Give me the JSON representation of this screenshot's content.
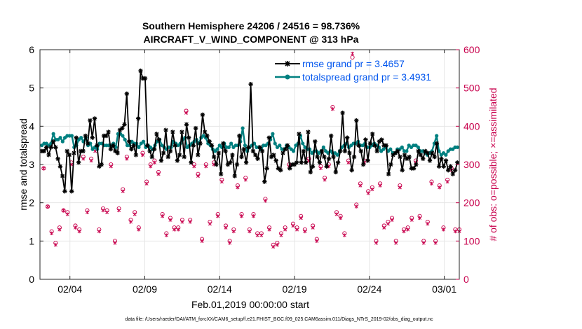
{
  "chart_data": {
    "type": "line",
    "title_line1": "Southern Hemisphere 24206 / 24516 = 98.736%",
    "title_line2": "AIRCRAFT_V_WIND_COMPONENT @ 313 hPa",
    "xlabel": "Feb.01,2019 00:00:00 start",
    "ylabel_left": "rmse and totalspread",
    "ylabel_right": "# of obs: o=possible; ×=assimilated",
    "footer": "data file: /Users/raeder/DAI/ATM_forcXX/CAM6_setup/f.e21.FHIST_BGC.f09_025.CAM6assim.011/Diags_NTrS_2019-02/obs_diag_output.nc",
    "xlim": [
      1,
      29
    ],
    "ylim_left": [
      0,
      6
    ],
    "ylim_right": [
      0,
      600
    ],
    "x_ticks": [
      3,
      8,
      13,
      18,
      23,
      28
    ],
    "x_tick_labels": [
      "02/04",
      "02/09",
      "02/14",
      "02/19",
      "02/24",
      "03/01"
    ],
    "y_ticks_left": [
      0,
      1,
      2,
      3,
      4,
      5,
      6
    ],
    "y_ticks_right": [
      0,
      100,
      200,
      300,
      400,
      500,
      600
    ],
    "series": [
      {
        "name": "rmse grand pr = 3.4657",
        "color": "#000000",
        "values": [
          3.35,
          3.35,
          3.45,
          3.25,
          3.45,
          3.6,
          3.45,
          3.15,
          2.95,
          2.7,
          2.3,
          3.35,
          3.25,
          2.3,
          3.3,
          3.7,
          3.05,
          3.35,
          3.35,
          3.75,
          3.55,
          4.15,
          3.7,
          4.2,
          3.5,
          2.95,
          3.0,
          3.75,
          3.75,
          3.85,
          3.4,
          3.5,
          3.35,
          3.3,
          3.9,
          3.95,
          4.05,
          4.85,
          3.6,
          3.4,
          3.5,
          3.25,
          4.2,
          5.45,
          5.25,
          5.25,
          3.5,
          3.35,
          3.2,
          3.4,
          3.8,
          3.65,
          3.1,
          3.3,
          3.9,
          3.2,
          3.35,
          3.85,
          3.5,
          3.1,
          3.25,
          3.85,
          3.2,
          4.05,
          3.7,
          3.05,
          3.5,
          3.95,
          3.25,
          3.55,
          4.3,
          3.85,
          3.75,
          3.6,
          3.5,
          3.2,
          3.0,
          3.3,
          2.75,
          3.55,
          3.35,
          3.0,
          3.05,
          3.25,
          2.7,
          3.0,
          3.75,
          3.2,
          3.4,
          3.05,
          3.45,
          5.1,
          3.35,
          3.25,
          3.15,
          3.45,
          3.35,
          2.55,
          2.9,
          3.7,
          3.2,
          3.25,
          3.1,
          2.9,
          2.85,
          3.3,
          3.4,
          3.5,
          2.9,
          3.0,
          3.0,
          3.05,
          3.8,
          3.05,
          3.35,
          3.05,
          3.85,
          2.8,
          2.95,
          3.6,
          3.2,
          3.05,
          3.35,
          3.2,
          2.95,
          3.15,
          3.75,
          3.2,
          2.8,
          3.05,
          3.35,
          4.35,
          3.35,
          3.7,
          3.3,
          2.85,
          3.2,
          4.15,
          3.5,
          3.35,
          3.0,
          3.65,
          3.1,
          3.55,
          3.8,
          3.5,
          3.35,
          3.6,
          3.65,
          3.5,
          3.5,
          2.75,
          3.0,
          3.25,
          3.3,
          3.35,
          3.2,
          2.85,
          3.25,
          3.15,
          3.2,
          2.9,
          2.9,
          3.0,
          3.35,
          3.25,
          3.15,
          3.35,
          3.3,
          3.1,
          3.3,
          3.2,
          3.55,
          2.95,
          3.15,
          2.95,
          3.1,
          2.85,
          2.95,
          2.75,
          2.85,
          3.05
        ]
      },
      {
        "name": "totalspread grand pr = 3.4931",
        "color": "#008080",
        "values": [
          3.5,
          3.55,
          3.55,
          3.5,
          3.55,
          3.8,
          3.65,
          3.65,
          3.7,
          3.6,
          3.7,
          3.75,
          3.75,
          3.75,
          3.45,
          3.5,
          3.65,
          3.7,
          3.6,
          3.7,
          3.5,
          3.55,
          3.4,
          3.45,
          3.4,
          3.55,
          3.55,
          3.5,
          3.5,
          3.5,
          3.5,
          3.55,
          3.45,
          3.8,
          3.8,
          3.75,
          3.65,
          3.5,
          3.5,
          3.6,
          3.55,
          3.55,
          3.45,
          3.55,
          3.6,
          3.45,
          3.5,
          3.45,
          3.4,
          3.5,
          3.6,
          3.65,
          3.5,
          3.45,
          3.4,
          3.45,
          3.45,
          3.6,
          3.55,
          3.5,
          3.55,
          3.65,
          3.7,
          3.45,
          3.5,
          3.55,
          3.6,
          3.65,
          3.55,
          3.7,
          3.75,
          3.7,
          3.55,
          3.5,
          3.4,
          3.35,
          3.4,
          3.5,
          3.45,
          3.55,
          3.45,
          3.45,
          3.55,
          3.45,
          3.5,
          3.5,
          3.6,
          3.95,
          3.5,
          3.35,
          3.45,
          3.5,
          3.55,
          3.45,
          3.45,
          3.4,
          3.5,
          3.5,
          3.55,
          3.65,
          3.8,
          3.55,
          3.45,
          3.5,
          3.4,
          3.4,
          3.5,
          3.45,
          3.4,
          3.35,
          3.5,
          3.55,
          3.75,
          3.55,
          3.45,
          3.4,
          3.4,
          3.3,
          3.35,
          3.35,
          3.3,
          3.35,
          3.45,
          3.35,
          3.3,
          3.35,
          3.3,
          3.3,
          3.25,
          3.35,
          3.45,
          3.5,
          3.55,
          3.45,
          3.5,
          3.55,
          3.55,
          3.6,
          3.5,
          3.5,
          3.55,
          3.45,
          3.45,
          3.5,
          3.55,
          3.5,
          3.45,
          3.35,
          3.4,
          3.45,
          3.35,
          3.4,
          3.3,
          3.3,
          3.4,
          3.4,
          3.45,
          3.35,
          3.35,
          3.5,
          3.45,
          3.5,
          3.5,
          3.45,
          3.35,
          3.35,
          3.3,
          3.25,
          3.3,
          3.35,
          3.55,
          3.75,
          3.35,
          3.25,
          3.3,
          3.25,
          3.35,
          3.4,
          3.4,
          3.45,
          3.45
        ]
      },
      {
        "name": "obs possible",
        "color": "#c8004c",
        "values": [
          290,
          190,
          125,
          95,
          135,
          180,
          175,
          305,
          140,
          130,
          320,
          180,
          315,
          340,
          130,
          185,
          180,
          300,
          100,
          185,
          235,
          320,
          155,
          175,
          135,
          330,
          255,
          300,
          310,
          280,
          170,
          120,
          160,
          135,
          135,
          155,
          440,
          155,
          300,
          275,
          105,
          300,
          150,
          305,
          170,
          260,
          140,
          100,
          130,
          245,
          170,
          265,
          130,
          170,
          120,
          120,
          210,
          135,
          90,
          95,
          120,
          135,
          300,
          145,
          135,
          165,
          130,
          315,
          140,
          105,
          295,
          265,
          300,
          450,
          175,
          165,
          120,
          310,
          580,
          195,
          250,
          310,
          230,
          240,
          100,
          250,
          140,
          150,
          160,
          100,
          245,
          130,
          135,
          160,
          310,
          165,
          100,
          150,
          255,
          100,
          245,
          135,
          260,
          290,
          130,
          130
        ]
      },
      {
        "name": "obs assimilated",
        "color": "#c8004c",
        "values": [
          290,
          190,
          120,
          90,
          130,
          180,
          170,
          300,
          135,
          125,
          315,
          175,
          310,
          335,
          125,
          180,
          175,
          295,
          95,
          180,
          230,
          315,
          150,
          170,
          130,
          325,
          250,
          295,
          305,
          275,
          165,
          115,
          155,
          130,
          130,
          150,
          435,
          150,
          295,
          270,
          100,
          295,
          145,
          300,
          165,
          255,
          135,
          95,
          125,
          240,
          165,
          260,
          125,
          165,
          115,
          115,
          205,
          130,
          85,
          90,
          115,
          130,
          295,
          140,
          130,
          160,
          125,
          310,
          135,
          100,
          290,
          260,
          295,
          445,
          170,
          160,
          115,
          305,
          590,
          190,
          245,
          305,
          225,
          235,
          95,
          245,
          135,
          145,
          155,
          95,
          240,
          125,
          130,
          155,
          305,
          160,
          95,
          145,
          250,
          95,
          240,
          130,
          255,
          285,
          125,
          125
        ]
      }
    ]
  }
}
